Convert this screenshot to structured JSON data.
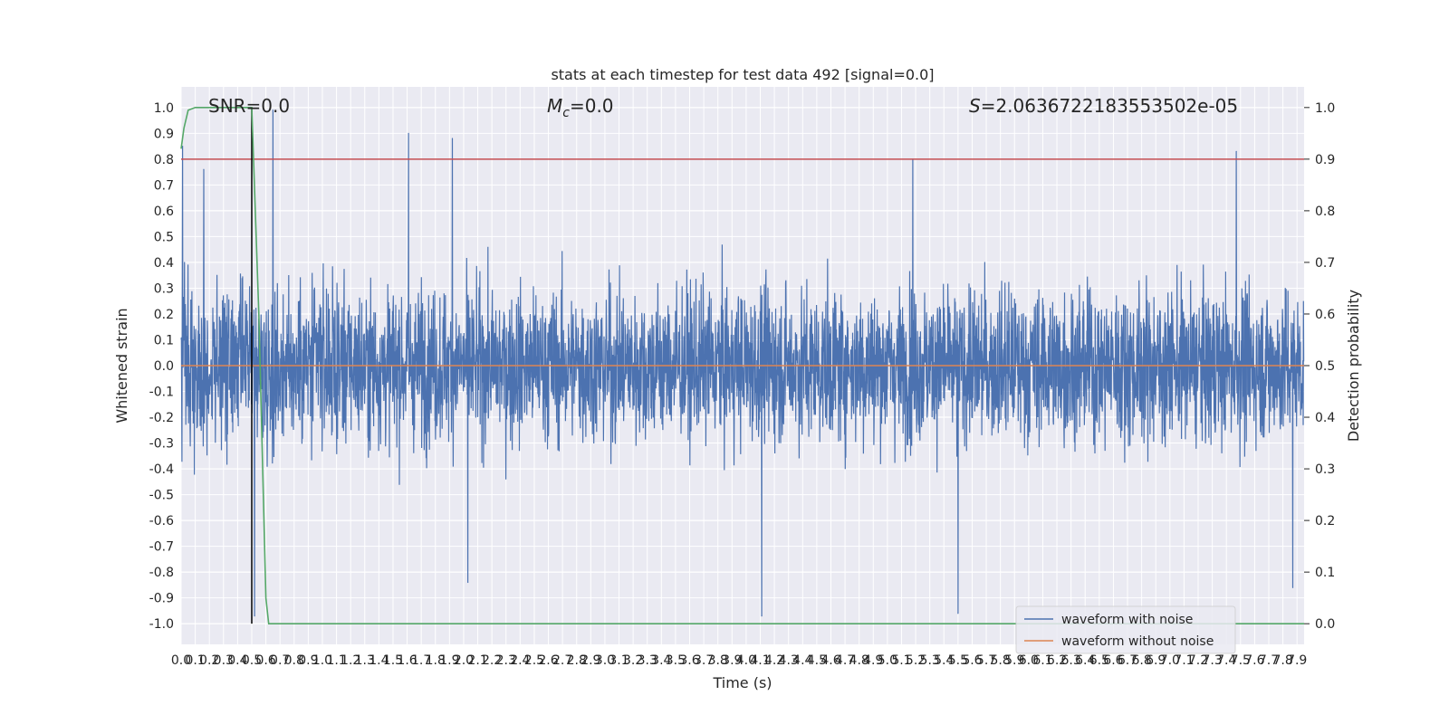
{
  "chart_data": {
    "type": "line",
    "title": "stats at each timestep for test data 492 [signal=0.0]",
    "xlabel": "Time (s)",
    "ylabel_left": "Whitened strain",
    "ylabel_right": "Detection probability",
    "xlim": [
      0.0,
      7.95
    ],
    "ylim_left": [
      -1.08,
      1.08
    ],
    "ylim_right": [
      -0.04,
      1.04
    ],
    "x_ticks": [
      0.0,
      0.1,
      0.2,
      0.3,
      0.4,
      0.5,
      0.6,
      0.7,
      0.8,
      0.9,
      1.0,
      1.1,
      1.2,
      1.3,
      1.4,
      1.5,
      1.6,
      1.7,
      1.8,
      1.9,
      2.0,
      2.1,
      2.2,
      2.3,
      2.4,
      2.5,
      2.6,
      2.7,
      2.8,
      2.9,
      3.0,
      3.1,
      3.2,
      3.3,
      3.4,
      3.5,
      3.6,
      3.7,
      3.8,
      3.9,
      4.0,
      4.1,
      4.2,
      4.3,
      4.4,
      4.5,
      4.6,
      4.7,
      4.8,
      4.9,
      5.0,
      5.1,
      5.2,
      5.3,
      5.4,
      5.5,
      5.6,
      5.7,
      5.8,
      5.9,
      6.0,
      6.1,
      6.2,
      6.3,
      6.4,
      6.5,
      6.6,
      6.7,
      6.8,
      6.9,
      7.0,
      7.1,
      7.2,
      7.3,
      7.4,
      7.5,
      7.6,
      7.7,
      7.8,
      7.9
    ],
    "y_ticks_left": [
      1.0,
      0.9,
      0.8,
      0.7,
      0.6,
      0.5,
      0.4,
      0.3,
      0.2,
      0.1,
      0.0,
      -0.1,
      -0.2,
      -0.3,
      -0.4,
      -0.5,
      -0.6,
      -0.7,
      -0.8,
      -0.9,
      -1.0
    ],
    "y_ticks_right": [
      1.0,
      0.9,
      0.8,
      0.7,
      0.6,
      0.5,
      0.4,
      0.3,
      0.2,
      0.1,
      0.0
    ],
    "annotations": {
      "snr": "SNR=0.0",
      "mc_symbol": "M",
      "mc_sub": "c",
      "mc_value": "=0.0",
      "s_symbol": "S",
      "s_value": "=2.0636722183553502e-05"
    },
    "legend": {
      "position": "lower-right",
      "entries": [
        {
          "label": "waveform with noise",
          "color": "#4c72b0"
        },
        {
          "label": "waveform without noise",
          "color": "#dd8452"
        }
      ]
    },
    "threshold_left": 0.8,
    "marker_time": 0.5,
    "noise_series": {
      "name": "waveform with noise",
      "color": "#4c72b0",
      "sample_rate": 512,
      "typical_amplitude": 0.45,
      "peaks": [
        {
          "x": 0.01,
          "y": 0.85
        },
        {
          "x": 0.16,
          "y": 0.76
        },
        {
          "x": 0.52,
          "y": -0.97
        },
        {
          "x": 0.65,
          "y": 0.99
        },
        {
          "x": 1.61,
          "y": 0.9
        },
        {
          "x": 1.92,
          "y": 0.88
        },
        {
          "x": 2.03,
          "y": -0.84
        },
        {
          "x": 4.11,
          "y": -0.97
        },
        {
          "x": 5.18,
          "y": 0.8
        },
        {
          "x": 5.5,
          "y": -0.96
        },
        {
          "x": 7.47,
          "y": 0.83
        },
        {
          "x": 7.87,
          "y": -0.86
        }
      ]
    },
    "clean_series": {
      "name": "waveform without noise",
      "color": "#dd8452",
      "values": "0.0 for all t"
    },
    "probability_series": {
      "color": "#55a868",
      "x": [
        0.0,
        0.02,
        0.05,
        0.1,
        0.2,
        0.3,
        0.4,
        0.5,
        0.55,
        0.6,
        0.62,
        1.0,
        2.0,
        3.0,
        4.0,
        5.0,
        6.0,
        7.0,
        7.95
      ],
      "y": [
        0.92,
        0.96,
        0.995,
        1.0,
        1.0,
        1.0,
        1.0,
        1.0,
        0.6,
        0.05,
        0.0,
        0.0,
        0.0,
        0.0,
        0.0,
        0.0,
        0.0,
        0.0,
        0.0
      ]
    },
    "colors": {
      "background": "#eaeaf2",
      "grid": "#ffffff",
      "threshold": "#c44e52",
      "marker": "#000000",
      "text": "#262626"
    }
  }
}
